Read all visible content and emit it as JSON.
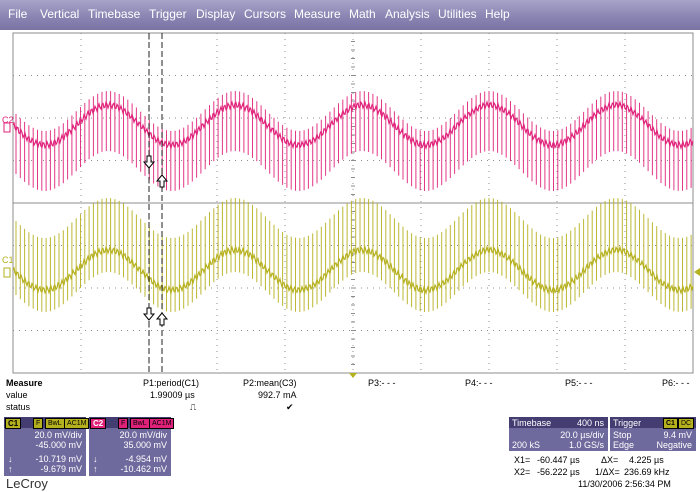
{
  "menu": [
    "File",
    "Vertical",
    "Timebase",
    "Trigger",
    "Display",
    "Cursors",
    "Measure",
    "Math",
    "Analysis",
    "Utilities",
    "Help"
  ],
  "colors": {
    "c1": "#b5b01d",
    "c2": "#e0217a",
    "grid": "#8c8c8c",
    "menu": "#8b85b3",
    "panel": "#6f6a9d"
  },
  "traces": {
    "c2_label": "C2",
    "c1_label": "C1",
    "c2_marker": "1",
    "c1_marker": "1"
  },
  "measure": {
    "title": "Measure",
    "row_value": "value",
    "row_status": "status",
    "params": [
      {
        "name": "P1:period(C1)",
        "value": "1.99009 µs",
        "status": "⎍"
      },
      {
        "name": "P2:mean(C3)",
        "value": "992.7 mA",
        "status": "✔"
      },
      {
        "name": "P3:- - -",
        "value": "",
        "status": ""
      },
      {
        "name": "P4:- - -",
        "value": "",
        "status": ""
      },
      {
        "name": "P5:- - -",
        "value": "",
        "status": ""
      },
      {
        "name": "P6:- - -",
        "value": "",
        "status": ""
      }
    ]
  },
  "c1_desc": {
    "label": "C1",
    "tags": [
      "F",
      "BwL",
      "AC1M"
    ],
    "vdiv": "20.0 mV/div",
    "offset": "-45.000 mV",
    "down_icon": "↓",
    "down_val": "-10.719 mV",
    "up_icon": "↑",
    "up_val": "-9.679 mV"
  },
  "c2_desc": {
    "label": "C2",
    "tags": [
      "F",
      "BwL",
      "AC1M"
    ],
    "vdiv": "20.0 mV/div",
    "offset": "35.000 mV",
    "down_icon": "↓",
    "down_val": "-4.954 mV",
    "up_icon": "↑",
    "up_val": "-10.462 mV"
  },
  "timebase": {
    "title": "Timebase",
    "delay": "400 ns",
    "tdiv": "20.0 µs/div",
    "samples": "200 kS",
    "rate": "1.0 GS/s"
  },
  "trigger": {
    "title": "Trigger",
    "tag1": "C1",
    "tag2": "DC",
    "mode": "Stop",
    "level": "9.4 mV",
    "type": "Edge",
    "slope": "Negative"
  },
  "cursors": {
    "x1_label": "X1=",
    "x1": "-60.447 µs",
    "dx_label": "ΔX=",
    "dx": "4.225 µs",
    "x2_label": "X2=",
    "x2": "-56.222 µs",
    "inv_label": "1/ΔX=",
    "inv": "236.69 kHz"
  },
  "footer": {
    "brand": "LeCroy",
    "datetime": "11/30/2006 2:56:34 PM"
  }
}
